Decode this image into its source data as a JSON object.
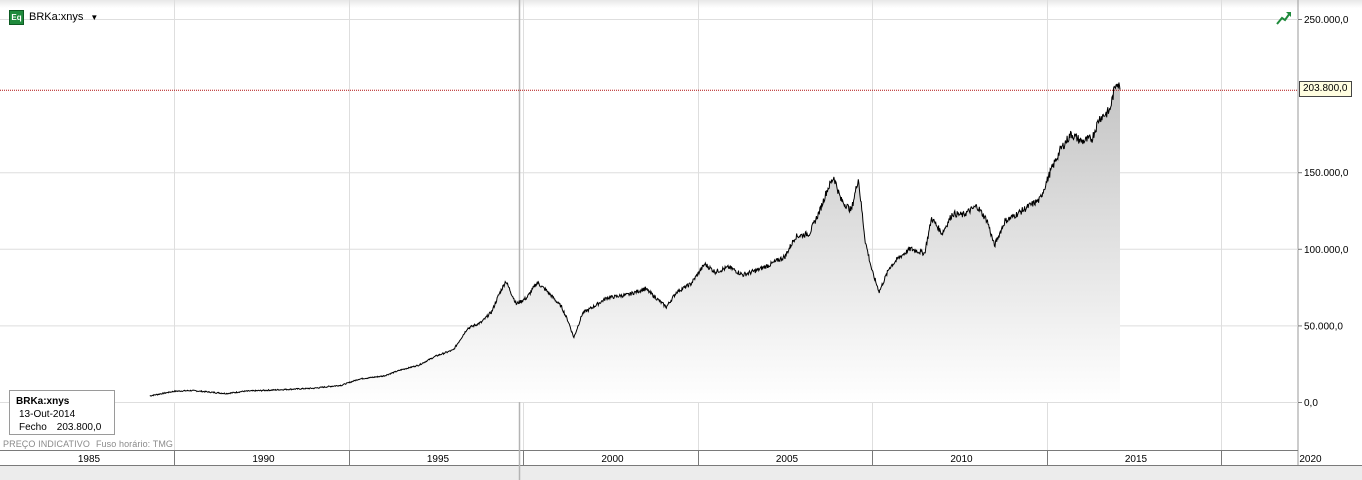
{
  "toolbar": {
    "icon_label": "Eq",
    "symbol": "BRKa:xnys",
    "dropdown_icon": "triangle-down-icon",
    "trend_icon": "trend-up-icon"
  },
  "info_box": {
    "symbol": "BRKa:xnys",
    "date": "13-Out-2014",
    "close_label": "Fecho",
    "close_value": "203.800,0"
  },
  "footer": {
    "price_note": "PREÇO INDICATIVO",
    "timezone": "Fuso horário: TMG"
  },
  "price_tag": "203.800,0",
  "colors": {
    "line": "#000000",
    "area_top": "#c8c8c8",
    "area_bottom": "#ffffff",
    "grid": "#dedede",
    "last_price_line": "#b01010",
    "icon_green": "#1f8a3c"
  },
  "chart_data": {
    "type": "area",
    "series": [
      {
        "values": [
          {
            "x": 1986.8,
            "y": 4000
          },
          {
            "x": 1987.5,
            "y": 7000
          },
          {
            "x": 1988.0,
            "y": 7500
          },
          {
            "x": 1988.5,
            "y": 6500
          },
          {
            "x": 1989.0,
            "y": 5500
          },
          {
            "x": 1989.5,
            "y": 7000
          },
          {
            "x": 1990.5,
            "y": 8000
          },
          {
            "x": 1991.5,
            "y": 9000
          },
          {
            "x": 1992.3,
            "y": 11000
          },
          {
            "x": 1992.8,
            "y": 15000
          },
          {
            "x": 1993.5,
            "y": 17000
          },
          {
            "x": 1994.0,
            "y": 21000
          },
          {
            "x": 1994.5,
            "y": 24000
          },
          {
            "x": 1995.0,
            "y": 30000
          },
          {
            "x": 1995.5,
            "y": 34000
          },
          {
            "x": 1995.9,
            "y": 48000
          },
          {
            "x": 1996.3,
            "y": 52000
          },
          {
            "x": 1996.6,
            "y": 59000
          },
          {
            "x": 1996.8,
            "y": 70000
          },
          {
            "x": 1997.0,
            "y": 79000
          },
          {
            "x": 1997.3,
            "y": 64000
          },
          {
            "x": 1997.6,
            "y": 68000
          },
          {
            "x": 1997.9,
            "y": 78000
          },
          {
            "x": 1998.2,
            "y": 72000
          },
          {
            "x": 1998.6,
            "y": 62000
          },
          {
            "x": 1998.8,
            "y": 52000
          },
          {
            "x": 1998.95,
            "y": 42000
          },
          {
            "x": 1999.2,
            "y": 58000
          },
          {
            "x": 1999.5,
            "y": 62000
          },
          {
            "x": 1999.9,
            "y": 68000
          },
          {
            "x": 2000.5,
            "y": 70000
          },
          {
            "x": 2001.0,
            "y": 74000
          },
          {
            "x": 2001.3,
            "y": 68000
          },
          {
            "x": 2001.6,
            "y": 62000
          },
          {
            "x": 2001.9,
            "y": 72000
          },
          {
            "x": 2002.3,
            "y": 77000
          },
          {
            "x": 2002.7,
            "y": 90000
          },
          {
            "x": 2003.0,
            "y": 85000
          },
          {
            "x": 2003.4,
            "y": 88000
          },
          {
            "x": 2003.8,
            "y": 83000
          },
          {
            "x": 2004.2,
            "y": 86000
          },
          {
            "x": 2004.6,
            "y": 90000
          },
          {
            "x": 2005.0,
            "y": 95000
          },
          {
            "x": 2005.3,
            "y": 108000
          },
          {
            "x": 2005.7,
            "y": 110000
          },
          {
            "x": 2006.0,
            "y": 125000
          },
          {
            "x": 2006.2,
            "y": 138000
          },
          {
            "x": 2006.4,
            "y": 147000
          },
          {
            "x": 2006.6,
            "y": 132000
          },
          {
            "x": 2006.9,
            "y": 125000
          },
          {
            "x": 2007.1,
            "y": 146000
          },
          {
            "x": 2007.3,
            "y": 105000
          },
          {
            "x": 2007.5,
            "y": 85000
          },
          {
            "x": 2007.7,
            "y": 72000
          },
          {
            "x": 2008.0,
            "y": 88000
          },
          {
            "x": 2008.3,
            "y": 95000
          },
          {
            "x": 2008.6,
            "y": 100000
          },
          {
            "x": 2009.0,
            "y": 97000
          },
          {
            "x": 2009.2,
            "y": 120000
          },
          {
            "x": 2009.5,
            "y": 110000
          },
          {
            "x": 2009.8,
            "y": 123000
          },
          {
            "x": 2010.1,
            "y": 122000
          },
          {
            "x": 2010.5,
            "y": 128000
          },
          {
            "x": 2010.8,
            "y": 118000
          },
          {
            "x": 2011.0,
            "y": 102000
          },
          {
            "x": 2011.3,
            "y": 118000
          },
          {
            "x": 2011.6,
            "y": 122000
          },
          {
            "x": 2012.0,
            "y": 128000
          },
          {
            "x": 2012.3,
            "y": 132000
          },
          {
            "x": 2012.6,
            "y": 150000
          },
          {
            "x": 2012.9,
            "y": 165000
          },
          {
            "x": 2013.2,
            "y": 175000
          },
          {
            "x": 2013.5,
            "y": 170000
          },
          {
            "x": 2013.8,
            "y": 172000
          },
          {
            "x": 2014.0,
            "y": 185000
          },
          {
            "x": 2014.3,
            "y": 190000
          },
          {
            "x": 2014.5,
            "y": 210000
          },
          {
            "x": 2014.6,
            "y": 204000
          }
        ]
      }
    ],
    "x_labels": [
      "1985",
      "1990",
      "1995",
      "2000",
      "2005",
      "2010",
      "2015",
      "2020"
    ],
    "y_ticks": [
      {
        "value": 0,
        "label": "0,0"
      },
      {
        "value": 50000,
        "label": "50.000,0"
      },
      {
        "value": 100000,
        "label": "100.000,0"
      },
      {
        "value": 150000,
        "label": "150.000,0"
      },
      {
        "value": 250000,
        "label": "250.000,0"
      }
    ],
    "last_value": 203800,
    "ylim": [
      0,
      250000
    ],
    "grid": true
  }
}
